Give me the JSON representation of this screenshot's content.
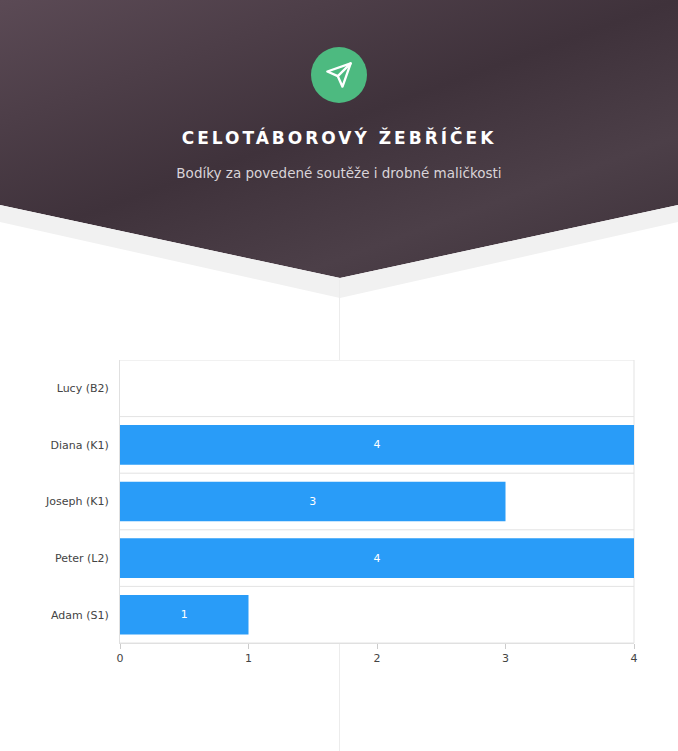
{
  "chart_data": {
    "type": "bar",
    "orientation": "horizontal",
    "title": "CELOTÁBOROVÝ ŽEBŘÍČEK",
    "subtitle": "Bodíky za povedené soutěže i drobné maličkosti",
    "categories": [
      "Lucy (B2)",
      "Diana (K1)",
      "Joseph (K1)",
      "Peter (L2)",
      "Adam (S1)"
    ],
    "values": [
      0,
      4,
      3,
      4,
      1
    ],
    "color": "#299cf8",
    "xlim": [
      0,
      4
    ],
    "xticks": [
      0,
      1,
      2,
      3,
      4
    ],
    "grid": false,
    "data_labels": true
  }
}
